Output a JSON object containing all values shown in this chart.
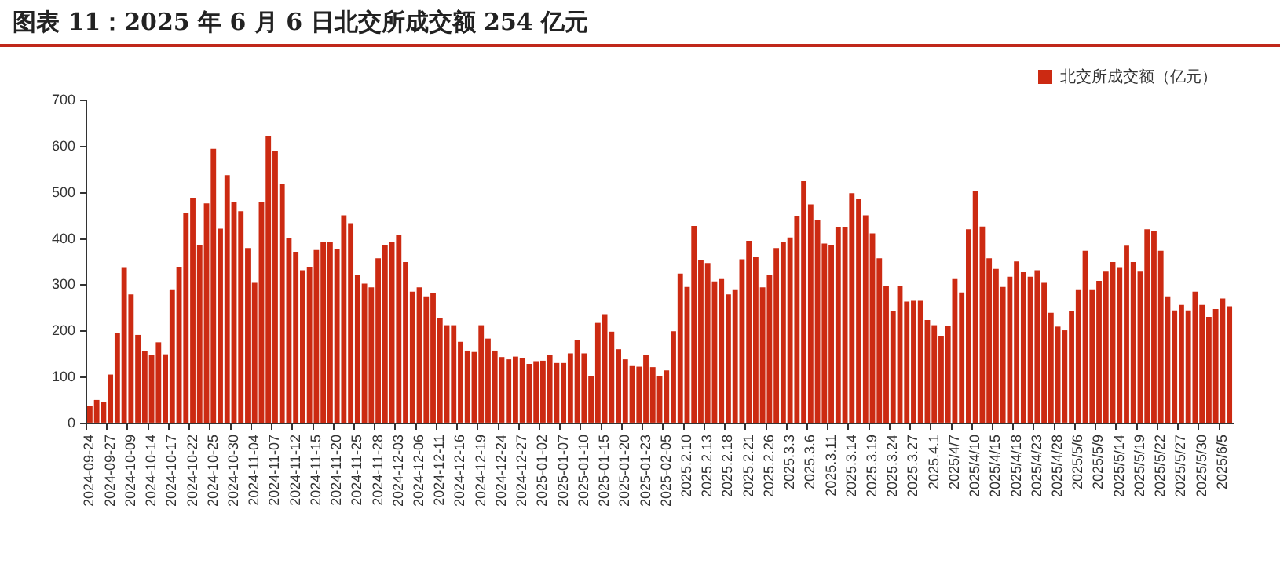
{
  "chart_data": {
    "type": "bar",
    "title": "图表 11：2025 年 6 月 6 日北交所成交额 254 亿元",
    "categories": [
      "2024-09-24",
      null,
      null,
      "2024-09-27",
      null,
      null,
      "2024-10-09",
      null,
      null,
      "2024-10-14",
      null,
      null,
      "2024-10-17",
      null,
      null,
      "2024-10-22",
      null,
      null,
      "2024-10-25",
      null,
      null,
      "2024-10-30",
      null,
      null,
      "2024-11-04",
      null,
      null,
      "2024-11-07",
      null,
      null,
      "2024-11-12",
      null,
      null,
      "2024-11-15",
      null,
      null,
      "2024-11-20",
      null,
      null,
      "2024-11-25",
      null,
      null,
      "2024-11-28",
      null,
      null,
      "2024-12-03",
      null,
      null,
      "2024-12-06",
      null,
      null,
      "2024-12-11",
      null,
      null,
      "2024-12-16",
      null,
      null,
      "2024-12-19",
      null,
      null,
      "2024-12-24",
      null,
      null,
      "2024-12-27",
      null,
      null,
      "2025-01-02",
      null,
      null,
      "2025-01-07",
      null,
      null,
      "2025-01-10",
      null,
      null,
      "2025-01-15",
      null,
      null,
      "2025-01-20",
      null,
      null,
      "2025-01-23",
      null,
      null,
      "2025-02-05",
      null,
      null,
      "2025.2.10",
      null,
      null,
      "2025.2.13",
      null,
      null,
      "2025.2.18",
      null,
      null,
      "2025.2.21",
      null,
      null,
      "2025.2.26",
      null,
      null,
      "2025.3.3",
      null,
      null,
      "2025.3.6",
      null,
      null,
      "2025.3.11",
      null,
      null,
      "2025.3.14",
      null,
      null,
      "2025.3.19",
      null,
      null,
      "2025.3.24",
      null,
      null,
      "2025.3.27",
      null,
      null,
      "2025.4.1",
      null,
      null,
      "2025/4/7",
      null,
      null,
      "2025/4/10",
      null,
      null,
      "2025/4/15",
      null,
      null,
      "2025/4/18",
      null,
      null,
      "2025/4/23",
      null,
      null,
      "2025/4/28",
      null,
      null,
      "2025/5/6",
      null,
      null,
      "2025/5/9",
      null,
      null,
      "2025/5/14",
      null,
      null,
      "2025/5/19",
      null,
      null,
      "2025/5/22",
      null,
      null,
      "2025/5/27",
      null,
      null,
      "2025/5/30",
      null,
      null,
      "2025/6/5",
      null
    ],
    "series": [
      {
        "name": "北交所成交额（亿元）",
        "color": "#cc2a12",
        "values": [
          39,
          51,
          46,
          106,
          197,
          337,
          280,
          192,
          157,
          148,
          176,
          150,
          289,
          338,
          457,
          489,
          386,
          477,
          595,
          422,
          538,
          480,
          460,
          380,
          305,
          480,
          623,
          591,
          518,
          401,
          372,
          332,
          338,
          376,
          393,
          393,
          379,
          451,
          434,
          322,
          303,
          295,
          358,
          386,
          393,
          408,
          350,
          286,
          295,
          274,
          283,
          228,
          213,
          213,
          177,
          158,
          155,
          213,
          184,
          158,
          144,
          139,
          145,
          141,
          129,
          135,
          136,
          149,
          131,
          131,
          152,
          181,
          152,
          103,
          218,
          237,
          199,
          161,
          139,
          126,
          123,
          148,
          122,
          103,
          115,
          200,
          325,
          296,
          428,
          354,
          348,
          308,
          313,
          280,
          289,
          356,
          396,
          360,
          295,
          322,
          380,
          393,
          403,
          450,
          525,
          475,
          441,
          390,
          386,
          425,
          425,
          499,
          486,
          451,
          412,
          358,
          298,
          244,
          299,
          264,
          266,
          266,
          224,
          213,
          189,
          212,
          313,
          284,
          421,
          504,
          427,
          358,
          335,
          296,
          318,
          351,
          328,
          318,
          332,
          305,
          240,
          210,
          202,
          244,
          289,
          374,
          289,
          309,
          329,
          350,
          337,
          385,
          350,
          329,
          421,
          417,
          374,
          274,
          245,
          257,
          245,
          286,
          257,
          231,
          248,
          271,
          254
        ]
      }
    ],
    "ylim": [
      0,
      700
    ],
    "yticks": [
      0,
      100,
      200,
      300,
      400,
      500,
      600,
      700
    ],
    "grid": false,
    "legend": "top right"
  }
}
